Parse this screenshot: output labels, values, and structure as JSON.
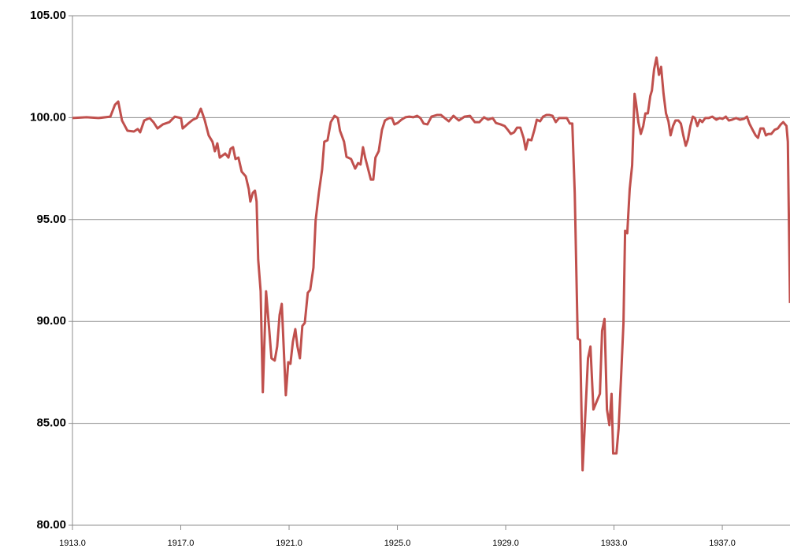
{
  "chart_data": {
    "type": "line",
    "color": "#c0504d",
    "grid": true,
    "xlim": [
      1913,
      1939.5
    ],
    "ylim": [
      80,
      105
    ],
    "xticks": [
      {
        "value": 1913,
        "label": "1913.0"
      },
      {
        "value": 1917,
        "label": "1917.0"
      },
      {
        "value": 1921,
        "label": "1921.0"
      },
      {
        "value": 1925,
        "label": "1925.0"
      },
      {
        "value": 1929,
        "label": "1929.0"
      },
      {
        "value": 1933,
        "label": "1933.0"
      },
      {
        "value": 1937,
        "label": "1937.0"
      }
    ],
    "yticks": [
      {
        "value": 80,
        "label": "80.00"
      },
      {
        "value": 85,
        "label": "85.00"
      },
      {
        "value": 90,
        "label": "90.00"
      },
      {
        "value": 95,
        "label": "95.00"
      },
      {
        "value": 100,
        "label": "100.00"
      },
      {
        "value": 105,
        "label": "105.00"
      }
    ],
    "x": [
      1913.0,
      1913.52,
      1913.96,
      1914.4,
      1914.57,
      1914.69,
      1914.83,
      1915.03,
      1915.27,
      1915.41,
      1915.5,
      1915.65,
      1915.85,
      1915.99,
      1916.14,
      1916.34,
      1916.58,
      1916.78,
      1917.01,
      1917.07,
      1917.3,
      1917.45,
      1917.59,
      1917.74,
      1917.88,
      1918.03,
      1918.17,
      1918.26,
      1918.35,
      1918.44,
      1918.64,
      1918.76,
      1918.84,
      1918.93,
      1919.02,
      1919.13,
      1919.25,
      1919.4,
      1919.51,
      1919.57,
      1919.66,
      1919.74,
      1919.8,
      1919.86,
      1919.95,
      1920.03,
      1920.15,
      1920.27,
      1920.35,
      1920.47,
      1920.56,
      1920.65,
      1920.73,
      1920.88,
      1920.97,
      1921.05,
      1921.14,
      1921.23,
      1921.31,
      1921.4,
      1921.49,
      1921.58,
      1921.69,
      1921.78,
      1921.9,
      1921.98,
      1922.1,
      1922.22,
      1922.3,
      1922.42,
      1922.54,
      1922.68,
      1922.8,
      1922.88,
      1923.03,
      1923.12,
      1923.29,
      1923.44,
      1923.55,
      1923.64,
      1923.73,
      1923.81,
      1923.9,
      1924.02,
      1924.11,
      1924.19,
      1924.31,
      1924.43,
      1924.54,
      1924.69,
      1924.8,
      1924.89,
      1925.01,
      1925.15,
      1925.3,
      1925.44,
      1925.59,
      1925.73,
      1925.85,
      1925.97,
      1926.11,
      1926.26,
      1926.46,
      1926.61,
      1926.75,
      1926.9,
      1927.07,
      1927.27,
      1927.48,
      1927.68,
      1927.86,
      1928.03,
      1928.2,
      1928.35,
      1928.52,
      1928.64,
      1928.81,
      1928.96,
      1929.08,
      1929.19,
      1929.31,
      1929.42,
      1929.54,
      1929.66,
      1929.74,
      1929.83,
      1929.95,
      1930.06,
      1930.15,
      1930.27,
      1930.38,
      1930.5,
      1930.62,
      1930.73,
      1930.85,
      1930.97,
      1931.14,
      1931.26,
      1931.37,
      1931.46,
      1931.55,
      1931.66,
      1931.75,
      1931.84,
      1931.95,
      1932.04,
      1932.13,
      1932.24,
      1932.36,
      1932.48,
      1932.56,
      1932.65,
      1932.74,
      1932.83,
      1932.91,
      1932.97,
      1933.09,
      1933.17,
      1933.26,
      1933.35,
      1933.41,
      1933.49,
      1933.58,
      1933.67,
      1933.76,
      1933.81,
      1933.9,
      1933.99,
      1934.08,
      1934.16,
      1934.25,
      1934.34,
      1934.4,
      1934.48,
      1934.57,
      1934.66,
      1934.74,
      1934.83,
      1934.92,
      1935.01,
      1935.09,
      1935.18,
      1935.27,
      1935.38,
      1935.47,
      1935.56,
      1935.65,
      1935.73,
      1935.82,
      1935.91,
      1935.99,
      1936.08,
      1936.17,
      1936.26,
      1936.37,
      1936.49,
      1936.63,
      1936.78,
      1936.9,
      1937.01,
      1937.13,
      1937.24,
      1937.36,
      1937.51,
      1937.65,
      1937.8,
      1937.91,
      1938.0,
      1938.12,
      1938.23,
      1938.32,
      1938.41,
      1938.52,
      1938.61,
      1938.7,
      1938.81,
      1938.93,
      1939.05,
      1939.16,
      1939.25,
      1939.37,
      1939.42,
      1939.5
    ],
    "values": [
      99.98,
      100.02,
      99.98,
      100.05,
      100.63,
      100.79,
      99.86,
      99.36,
      99.32,
      99.44,
      99.28,
      99.86,
      99.98,
      99.78,
      99.47,
      99.67,
      99.78,
      100.05,
      99.98,
      99.47,
      99.74,
      99.9,
      99.98,
      100.44,
      99.9,
      99.13,
      98.82,
      98.35,
      98.74,
      98.04,
      98.24,
      98.04,
      98.47,
      98.55,
      97.97,
      98.04,
      97.35,
      97.12,
      96.5,
      95.88,
      96.31,
      96.42,
      95.88,
      93.02,
      91.48,
      86.53,
      91.48,
      89.54,
      88.19,
      88.08,
      88.77,
      90.32,
      90.86,
      86.38,
      88.0,
      87.92,
      89.0,
      89.62,
      88.77,
      88.19,
      89.78,
      89.93,
      91.4,
      91.55,
      92.64,
      94.95,
      96.31,
      97.46,
      98.82,
      98.89,
      99.78,
      100.09,
      99.98,
      99.36,
      98.82,
      98.08,
      97.97,
      97.5,
      97.77,
      97.7,
      98.55,
      98.04,
      97.58,
      96.96,
      96.96,
      98.04,
      98.35,
      99.4,
      99.86,
      99.98,
      99.98,
      99.67,
      99.74,
      99.9,
      100.02,
      100.05,
      100.02,
      100.09,
      99.98,
      99.71,
      99.67,
      100.05,
      100.13,
      100.13,
      99.98,
      99.82,
      100.09,
      99.86,
      100.05,
      100.09,
      99.78,
      99.78,
      100.02,
      99.9,
      99.98,
      99.74,
      99.67,
      99.59,
      99.4,
      99.2,
      99.28,
      99.51,
      99.51,
      99.01,
      98.43,
      98.93,
      98.89,
      99.4,
      99.9,
      99.82,
      100.05,
      100.13,
      100.13,
      100.09,
      99.78,
      99.98,
      99.98,
      99.98,
      99.71,
      99.71,
      96.31,
      89.16,
      89.08,
      82.7,
      85.68,
      88.19,
      88.77,
      85.68,
      86.07,
      86.45,
      89.54,
      90.12,
      85.68,
      84.91,
      86.45,
      83.52,
      83.52,
      84.75,
      87.23,
      89.93,
      94.45,
      94.33,
      96.5,
      97.66,
      101.17,
      100.75,
      99.78,
      99.2,
      99.59,
      100.21,
      100.21,
      101.06,
      101.33,
      102.37,
      102.95,
      102.1,
      102.49,
      101.17,
      100.21,
      99.82,
      99.13,
      99.59,
      99.86,
      99.86,
      99.71,
      99.13,
      98.62,
      98.93,
      99.59,
      100.05,
      99.98,
      99.59,
      99.9,
      99.78,
      99.98,
      99.98,
      100.05,
      99.9,
      99.98,
      99.94,
      100.05,
      99.86,
      99.9,
      99.98,
      99.9,
      99.94,
      100.05,
      99.71,
      99.4,
      99.13,
      99.01,
      99.47,
      99.47,
      99.13,
      99.2,
      99.2,
      99.4,
      99.47,
      99.67,
      99.78,
      99.59,
      98.82,
      90.9
    ]
  }
}
